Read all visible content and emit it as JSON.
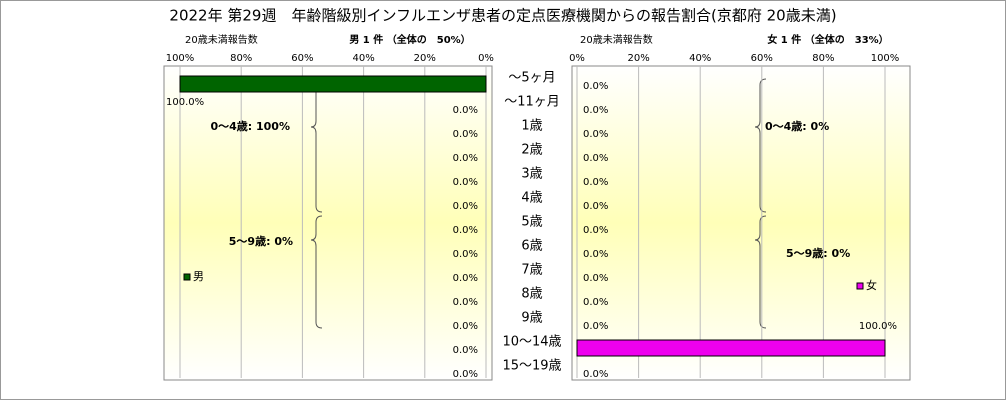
{
  "chart_data": {
    "type": "butterfly",
    "title": "2022年 第29週　年齢階級別インフルエンザ患者の定点医療機関からの報告割合(京都府 20歳未満)",
    "categories": [
      "～5ヶ月",
      "～11ヶ月",
      "1歳",
      "2歳",
      "3歳",
      "4歳",
      "5歳",
      "6歳",
      "7歳",
      "8歳",
      "9歳",
      "10～14歳",
      "15～19歳"
    ],
    "xlim": [
      0,
      100
    ],
    "xticks": [
      {
        "value": 0,
        "label": "0%"
      },
      {
        "value": 20,
        "label": "20%"
      },
      {
        "value": 40,
        "label": "40%"
      },
      {
        "value": 60,
        "label": "60%"
      },
      {
        "value": 80,
        "label": "80%"
      },
      {
        "value": 100,
        "label": "100%"
      }
    ],
    "grid": true,
    "series": [
      {
        "name": "男",
        "color": "#006400",
        "axis_label": "20歳未満報告数",
        "header": "男 1 件 （全体の　50%）",
        "values": [
          100,
          0,
          0,
          0,
          0,
          0,
          0,
          0,
          0,
          0,
          0,
          0,
          0
        ],
        "value_labels": [
          "100.0%",
          "0.0%",
          "0.0%",
          "0.0%",
          "0.0%",
          "0.0%",
          "0.0%",
          "0.0%",
          "0.0%",
          "0.0%",
          "0.0%",
          "0.0%",
          "0.0%"
        ],
        "annotations": [
          "0～4歳: 100%",
          "5～9歳: 0%"
        ]
      },
      {
        "name": "女",
        "color": "#ee00ee",
        "axis_label": "20歳未満報告数",
        "header": "女 1 件 （全体の　33%）",
        "values": [
          0,
          0,
          0,
          0,
          0,
          0,
          0,
          0,
          0,
          0,
          0,
          100,
          0
        ],
        "value_labels": [
          "0.0%",
          "0.0%",
          "0.0%",
          "0.0%",
          "0.0%",
          "0.0%",
          "0.0%",
          "0.0%",
          "0.0%",
          "0.0%",
          "0.0%",
          "100.0%",
          "0.0%"
        ],
        "annotations": [
          "0～4歳: 0%",
          "5～9歳: 0%"
        ]
      }
    ]
  }
}
